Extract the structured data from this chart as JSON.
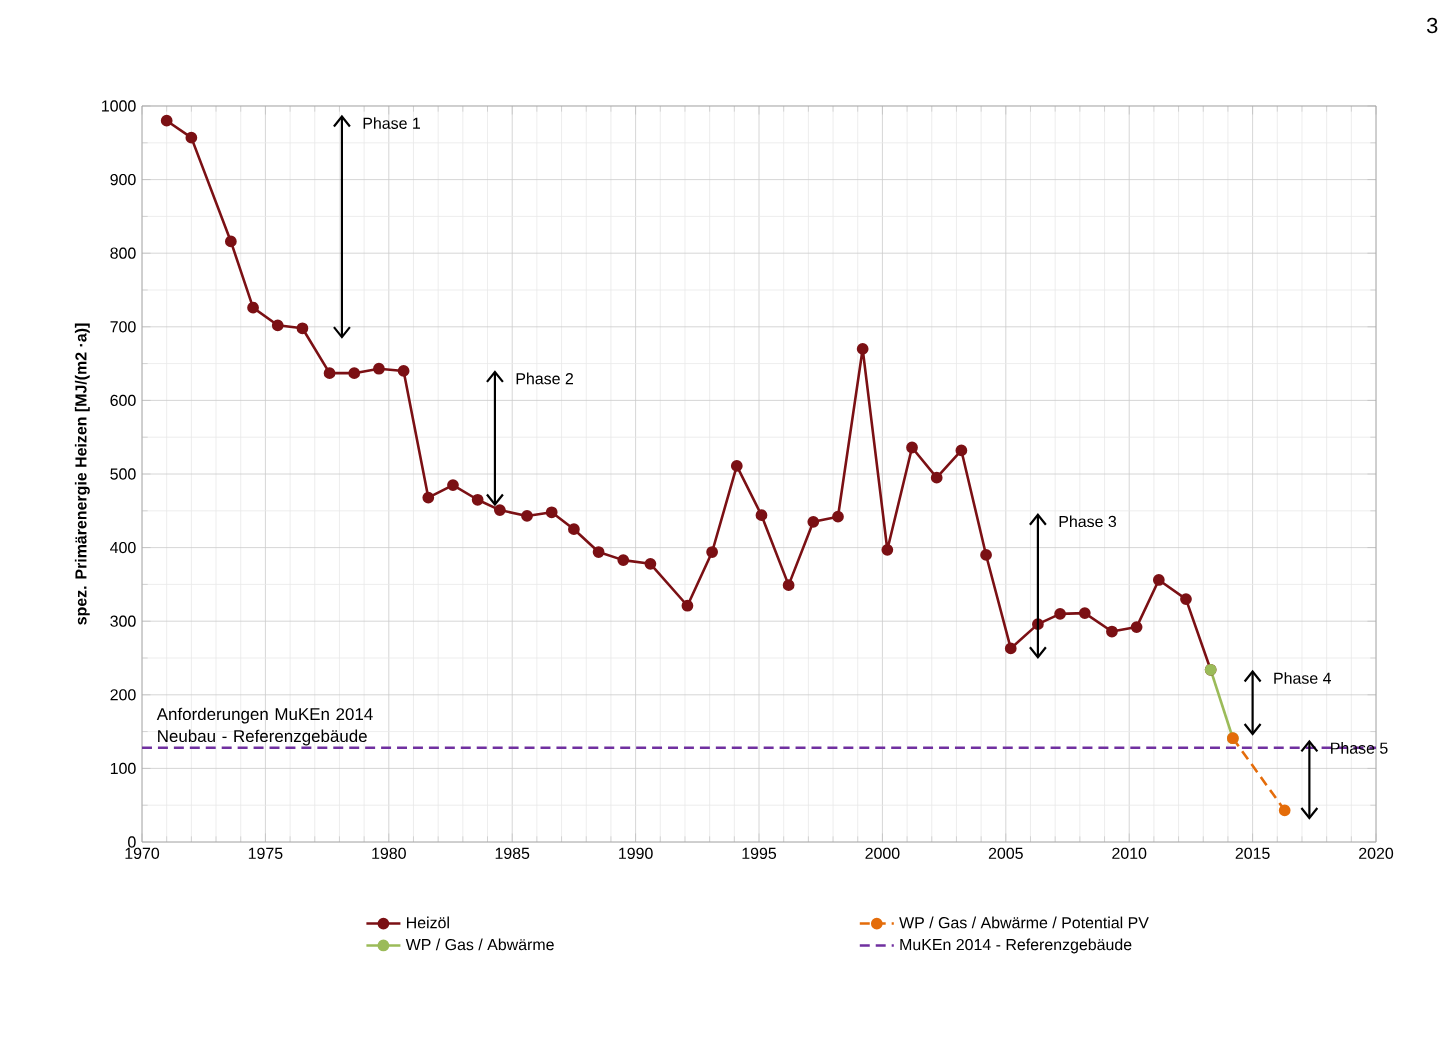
{
  "chart_data": {
    "type": "line",
    "ylabel": "spez. Primärenergie  Heizen [MJ/(m2 ·a)]",
    "xlim": [
      1970,
      2020
    ],
    "xticks": [
      1970,
      1975,
      1980,
      1985,
      1990,
      1995,
      2000,
      2005,
      2010,
      2015,
      2020
    ],
    "ylim": [
      0,
      1000
    ],
    "yticks": [
      0,
      100,
      200,
      300,
      400,
      500,
      600,
      700,
      800,
      900,
      1000
    ],
    "grid": true,
    "legend": "bottom",
    "marker": "circle",
    "series": [
      {
        "name": "Heizöl",
        "color": "#7b1014",
        "line_style": "solid",
        "x": [
          1971.0,
          1972.0,
          1973.6,
          1974.5,
          1975.5,
          1976.5,
          1977.6,
          1978.6,
          1979.6,
          1980.6,
          1981.6,
          1982.6,
          1983.6,
          1984.5,
          1985.6,
          1986.6,
          1987.5,
          1988.5,
          1989.5,
          1990.6,
          1992.1,
          1993.1,
          1994.1,
          1995.1,
          1996.2,
          1997.2,
          1998.2,
          1999.2,
          2000.2,
          2001.2,
          2002.2,
          2003.2,
          2004.2,
          2005.2,
          2006.3,
          2007.2,
          2008.2,
          2009.3,
          2010.3,
          2011.2,
          2012.3,
          2013.3
        ],
        "values": [
          980,
          957,
          816,
          726,
          702,
          698,
          637,
          637,
          643,
          640,
          468,
          485,
          465,
          451,
          443,
          448,
          425,
          394,
          383,
          378,
          321,
          394,
          511,
          444,
          349,
          435,
          442,
          670,
          397,
          536,
          495,
          532,
          390,
          263,
          296,
          310,
          311,
          286,
          292,
          356,
          330,
          234
        ]
      },
      {
        "name": "WP / Gas / Abwärme",
        "color": "#9bbb59",
        "line_style": "solid",
        "x": [
          2013.3,
          2014.2
        ],
        "values": [
          234,
          141
        ]
      },
      {
        "name": "WP / Gas / Abwärme / Potential PV",
        "color": "#e46c0a",
        "line_style": "dashed",
        "x": [
          2014.2,
          2016.3
        ],
        "values": [
          141,
          43
        ]
      },
      {
        "name": "MuKEn 2014 - Referenzgebäude",
        "color": "#7030a0",
        "line_style": "dashed",
        "marker": "none",
        "x": [
          1970,
          2020
        ],
        "values": [
          128,
          128
        ]
      }
    ],
    "annotations": [
      "3",
      {
        "text": "Anforderungen MuKEn 2014 Neubau - Referenzgebäude",
        "x": 1970.5,
        "y": 128
      },
      "Phase 1",
      "Phase 2",
      "Phase 3",
      "Phase 4",
      "Phase 5"
    ]
  }
}
